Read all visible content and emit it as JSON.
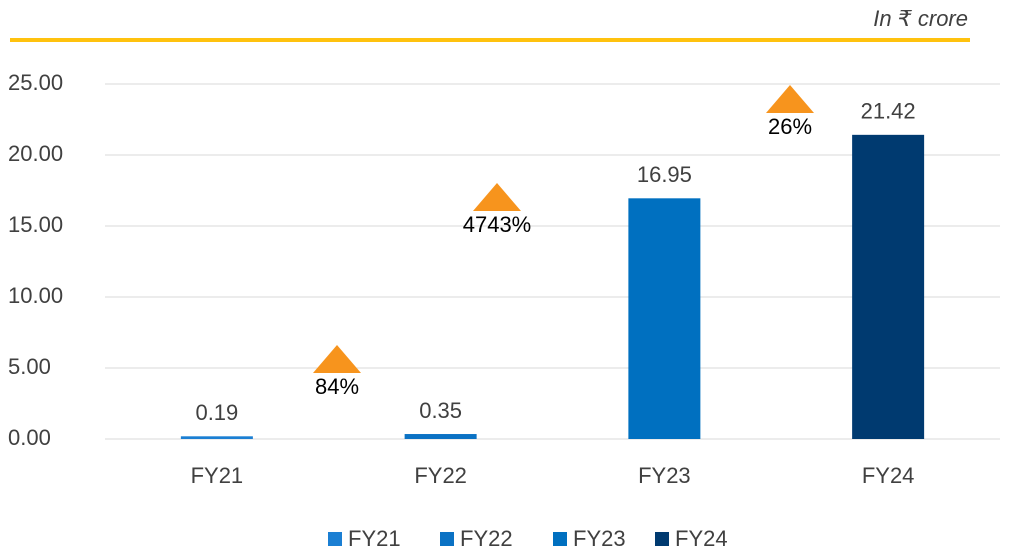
{
  "chart_data": {
    "type": "bar",
    "subtitle": "In ₹ crore",
    "categories": [
      "FY21",
      "FY22",
      "FY23",
      "FY24"
    ],
    "values": [
      0.19,
      0.35,
      16.95,
      21.42
    ],
    "colors": [
      "#1b7fd3",
      "#0b72c4",
      "#0070c0",
      "#003a70"
    ],
    "ylim": [
      0,
      25
    ],
    "yticks": [
      {
        "value": 0,
        "label": "0.00"
      },
      {
        "value": 5,
        "label": "5.00"
      },
      {
        "value": 10,
        "label": "10.00"
      },
      {
        "value": 15,
        "label": "15.00"
      },
      {
        "value": 20,
        "label": "20.00"
      },
      {
        "value": 25,
        "label": "25.00"
      }
    ],
    "grid": true,
    "annotations": [
      "84%",
      "4743%",
      "26%"
    ],
    "annotation_color": "#f7941d",
    "legend": "bottom"
  }
}
